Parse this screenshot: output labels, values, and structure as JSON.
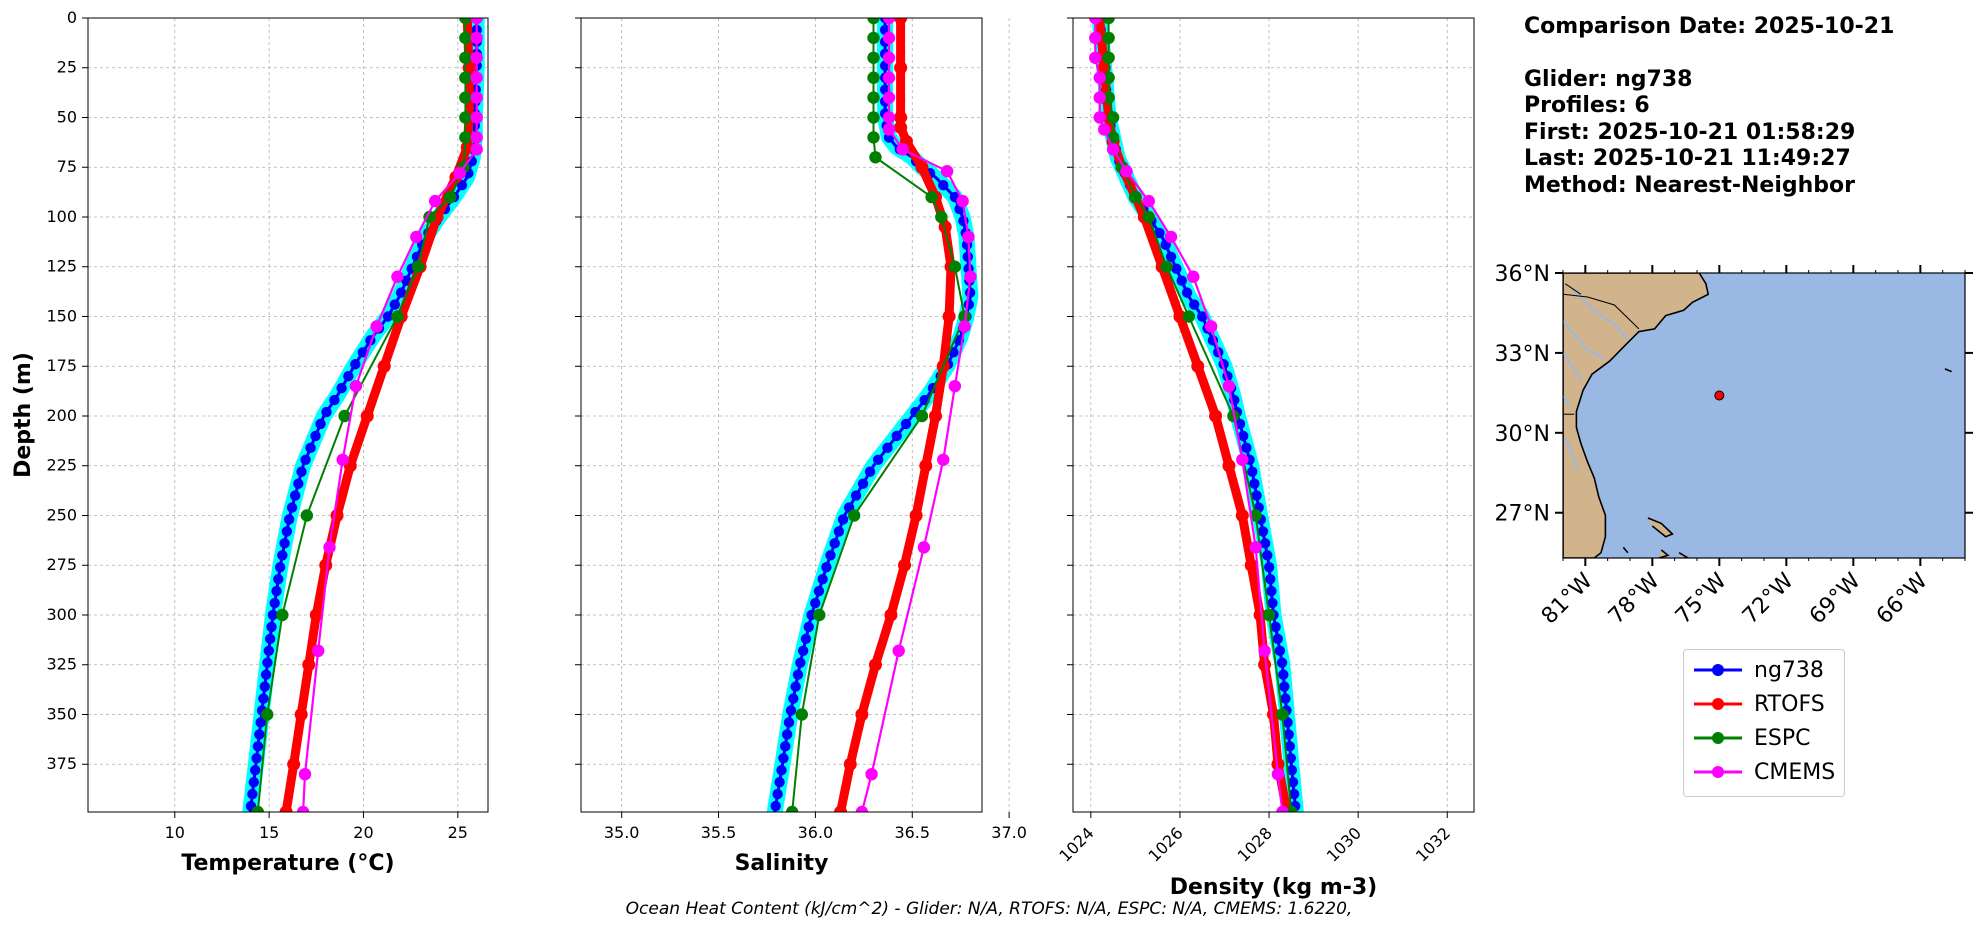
{
  "info": {
    "comparison_date": "Comparison Date: 2025-10-21",
    "glider": "Glider: ng738",
    "profiles": "Profiles: 6",
    "first": "First: 2025-10-21 01:58:29",
    "last": "Last: 2025-10-21 11:49:27",
    "method": "Method: Nearest-Neighbor"
  },
  "footer": "Ocean Heat Content (kJ/cm^2) - Glider: N/A,  RTOFS: N/A,  ESPC: N/A,  CMEMS: 1.6220,",
  "colors": {
    "ng738": "#0000ff",
    "ng738_band": "#00ffff",
    "RTOFS": "#ff0000",
    "ESPC": "#008000",
    "CMEMS": "#ff00ff",
    "land": "#d2b48c",
    "ocean": "#9ab8e4"
  },
  "legend": [
    {
      "name": "ng738",
      "color": "#0000ff"
    },
    {
      "name": "RTOFS",
      "color": "#ff0000"
    },
    {
      "name": "ESPC",
      "color": "#008000"
    },
    {
      "name": "CMEMS",
      "color": "#ff00ff"
    }
  ],
  "chart_data": [
    {
      "type": "line",
      "xlabel": "Temperature (°C)",
      "ylabel": "Depth (m)",
      "xlim": [
        5.4,
        26.6
      ],
      "ylim": [
        399,
        0
      ],
      "xticks": [
        10,
        15,
        20,
        25
      ],
      "yticks": [
        0,
        25,
        50,
        75,
        100,
        125,
        150,
        175,
        200,
        225,
        250,
        275,
        300,
        325,
        350,
        375
      ],
      "grid": true,
      "series": [
        {
          "name": "ng738",
          "depth": [
            0,
            25,
            50,
            60,
            70,
            80,
            90,
            100,
            110,
            125,
            140,
            150,
            160,
            175,
            190,
            200,
            225,
            250,
            275,
            300,
            325,
            350,
            375,
            399
          ],
          "values": [
            26.0,
            26.0,
            25.9,
            25.9,
            25.8,
            25.5,
            24.8,
            24.0,
            23.3,
            22.6,
            21.9,
            21.3,
            20.5,
            19.5,
            18.6,
            17.9,
            16.8,
            16.1,
            15.6,
            15.2,
            14.9,
            14.6,
            14.3,
            14.0
          ]
        },
        {
          "name": "RTOFS",
          "depth": [
            0,
            25,
            50,
            65,
            80,
            100,
            125,
            150,
            175,
            200,
            225,
            250,
            275,
            300,
            325,
            350,
            375,
            399
          ],
          "values": [
            25.5,
            25.6,
            25.6,
            25.5,
            24.9,
            23.9,
            23.0,
            22.0,
            21.1,
            20.2,
            19.3,
            18.6,
            18.0,
            17.5,
            17.1,
            16.7,
            16.3,
            15.9
          ]
        },
        {
          "name": "ESPC",
          "depth": [
            0,
            10,
            20,
            30,
            40,
            50,
            60,
            75,
            90,
            100,
            125,
            150,
            200,
            250,
            300,
            350,
            399
          ],
          "values": [
            25.4,
            25.4,
            25.4,
            25.4,
            25.4,
            25.4,
            25.4,
            25.3,
            24.6,
            23.5,
            22.9,
            21.8,
            19.0,
            17.0,
            15.7,
            14.9,
            14.4
          ]
        },
        {
          "name": "CMEMS",
          "depth": [
            0,
            10,
            20,
            30,
            40,
            50,
            60,
            66,
            78,
            92,
            110,
            130,
            155,
            185,
            222,
            266,
            318,
            380,
            399
          ],
          "values": [
            26.0,
            26.0,
            26.0,
            26.0,
            26.0,
            26.0,
            26.0,
            26.0,
            25.1,
            23.8,
            22.8,
            21.8,
            20.7,
            19.6,
            18.9,
            18.2,
            17.6,
            16.9,
            16.8
          ]
        }
      ]
    },
    {
      "type": "line",
      "xlabel": "Salinity",
      "xlim": [
        34.79,
        36.86
      ],
      "ylim": [
        399,
        0
      ],
      "xticks": [
        35.0,
        35.5,
        36.0,
        36.5,
        37.0
      ],
      "grid": true,
      "series": [
        {
          "name": "ng738",
          "depth": [
            0,
            25,
            50,
            60,
            65,
            70,
            75,
            80,
            90,
            100,
            110,
            125,
            140,
            150,
            160,
            175,
            190,
            200,
            225,
            250,
            275,
            300,
            325,
            350,
            375,
            399
          ],
          "values": [
            36.36,
            36.36,
            36.36,
            36.38,
            36.42,
            36.5,
            36.55,
            36.62,
            36.72,
            36.76,
            36.78,
            36.79,
            36.8,
            36.78,
            36.75,
            36.68,
            36.58,
            36.5,
            36.3,
            36.15,
            36.06,
            35.98,
            35.92,
            35.87,
            35.83,
            35.79
          ]
        },
        {
          "name": "RTOFS",
          "depth": [
            0,
            25,
            50,
            55,
            62,
            75,
            90,
            105,
            125,
            150,
            175,
            200,
            225,
            250,
            275,
            300,
            325,
            350,
            375,
            399
          ],
          "values": [
            36.44,
            36.44,
            36.44,
            36.44,
            36.47,
            36.55,
            36.62,
            36.67,
            36.7,
            36.69,
            36.66,
            36.62,
            36.57,
            36.52,
            36.46,
            36.39,
            36.31,
            36.24,
            36.18,
            36.13
          ]
        },
        {
          "name": "ESPC",
          "depth": [
            0,
            10,
            20,
            30,
            40,
            50,
            60,
            70,
            90,
            100,
            125,
            150,
            200,
            250,
            300,
            350,
            399
          ],
          "values": [
            36.3,
            36.3,
            36.3,
            36.3,
            36.3,
            36.3,
            36.3,
            36.31,
            36.6,
            36.65,
            36.72,
            36.77,
            36.55,
            36.2,
            36.02,
            35.93,
            35.88
          ]
        },
        {
          "name": "CMEMS",
          "depth": [
            0,
            10,
            20,
            30,
            40,
            50,
            56,
            66,
            77,
            92,
            110,
            130,
            155,
            185,
            222,
            266,
            318,
            380,
            399
          ],
          "values": [
            36.38,
            36.38,
            36.38,
            36.38,
            36.38,
            36.38,
            36.38,
            36.45,
            36.68,
            36.76,
            36.79,
            36.8,
            36.77,
            36.72,
            36.66,
            36.56,
            36.43,
            36.29,
            36.24
          ]
        }
      ]
    },
    {
      "type": "line",
      "xlabel": "Density (kg m-3)",
      "xlim": [
        1023.6,
        1032.6
      ],
      "ylim": [
        399,
        0
      ],
      "xticks": [
        1024,
        1026,
        1028,
        1030,
        1032
      ],
      "grid": true,
      "series": [
        {
          "name": "ng738",
          "depth": [
            0,
            25,
            50,
            60,
            70,
            80,
            90,
            100,
            110,
            125,
            140,
            150,
            160,
            175,
            190,
            200,
            225,
            250,
            275,
            300,
            325,
            350,
            375,
            399
          ],
          "values": [
            1024.2,
            1024.3,
            1024.4,
            1024.5,
            1024.6,
            1024.8,
            1025.0,
            1025.3,
            1025.6,
            1025.9,
            1026.2,
            1026.5,
            1026.7,
            1027.0,
            1027.2,
            1027.3,
            1027.6,
            1027.8,
            1028.0,
            1028.1,
            1028.3,
            1028.4,
            1028.5,
            1028.6
          ]
        },
        {
          "name": "RTOFS",
          "depth": [
            0,
            25,
            50,
            62,
            75,
            90,
            100,
            125,
            150,
            175,
            200,
            225,
            250,
            275,
            300,
            325,
            350,
            375,
            399
          ],
          "values": [
            1024.2,
            1024.3,
            1024.4,
            1024.5,
            1024.7,
            1025.0,
            1025.2,
            1025.6,
            1026.0,
            1026.4,
            1026.8,
            1027.1,
            1027.4,
            1027.6,
            1027.8,
            1027.9,
            1028.1,
            1028.2,
            1028.4
          ]
        },
        {
          "name": "ESPC",
          "depth": [
            0,
            10,
            20,
            30,
            40,
            50,
            60,
            75,
            90,
            100,
            125,
            150,
            200,
            250,
            300,
            350,
            399
          ],
          "values": [
            1024.4,
            1024.4,
            1024.4,
            1024.4,
            1024.4,
            1024.5,
            1024.5,
            1024.7,
            1025.0,
            1025.3,
            1025.7,
            1026.2,
            1027.2,
            1027.7,
            1028.0,
            1028.3,
            1028.5
          ]
        },
        {
          "name": "CMEMS",
          "depth": [
            0,
            10,
            20,
            30,
            40,
            50,
            56,
            66,
            77,
            92,
            110,
            130,
            155,
            185,
            222,
            266,
            318,
            380,
            399
          ],
          "values": [
            1024.1,
            1024.1,
            1024.1,
            1024.2,
            1024.2,
            1024.2,
            1024.3,
            1024.5,
            1024.8,
            1025.3,
            1025.8,
            1026.3,
            1026.7,
            1027.1,
            1027.4,
            1027.7,
            1027.9,
            1028.2,
            1028.3
          ]
        }
      ]
    },
    {
      "type": "map",
      "lat_ticks": [
        "36°N",
        "33°N",
        "30°N",
        "27°N"
      ],
      "lat_values": [
        36,
        33,
        30,
        27
      ],
      "lon_ticks": [
        "81°W",
        "78°W",
        "75°W",
        "72°W",
        "69°W",
        "66°W"
      ],
      "lon_values": [
        -81,
        -78,
        -75,
        -72,
        -69,
        -66
      ],
      "lon_range": [
        -82.0,
        -64.0
      ],
      "lat_range": [
        25.3,
        36.0
      ],
      "glider_position": {
        "lon": -75.0,
        "lat": 31.4
      }
    }
  ]
}
